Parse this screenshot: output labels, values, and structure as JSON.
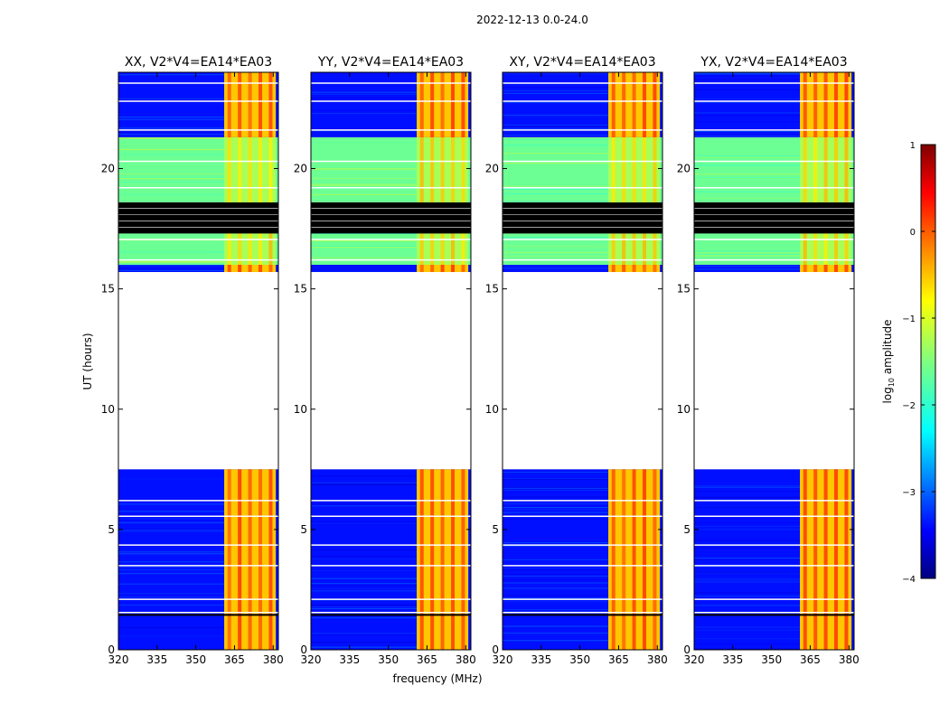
{
  "chart_data": {
    "type": "heatmap",
    "suptitle": "2022-12-13 0.0-24.0",
    "xlabel": "frequency (MHz)",
    "ylabel": "UT (hours)",
    "xlim": [
      320,
      382
    ],
    "ylim": [
      0,
      24
    ],
    "x_ticks": [
      320,
      335,
      350,
      365,
      380
    ],
    "y_ticks": [
      0,
      5,
      10,
      15,
      20
    ],
    "panels": [
      {
        "title": "XX, V2*V4=EA14*EA03",
        "polarization": "XX"
      },
      {
        "title": "YY, V2*V4=EA14*EA03",
        "polarization": "YY"
      },
      {
        "title": "XY, V2*V4=EA14*EA03",
        "polarization": "XY"
      },
      {
        "title": "YX, V2*V4=EA14*EA03",
        "polarization": "YX"
      }
    ],
    "colorbar": {
      "label": "log10 amplitude",
      "label_prefix": "log",
      "label_subscript": "10",
      "label_suffix": " amplitude",
      "range": [
        -4,
        1
      ],
      "ticks": [
        1,
        0,
        -1,
        -2,
        -3,
        -4
      ],
      "colormap": "jet"
    },
    "time_blocks": [
      {
        "start": 0.0,
        "end": 7.5,
        "state": "data",
        "low_log_amp": -3.3,
        "band_log_amp": -0.6
      },
      {
        "start": 7.5,
        "end": 15.7,
        "state": "no data"
      },
      {
        "start": 15.7,
        "end": 16.0,
        "state": "data",
        "low_log_amp": -3.3,
        "band_log_amp": -0.6
      },
      {
        "start": 16.0,
        "end": 17.3,
        "state": "data",
        "low_log_amp": -1.6,
        "band_log_amp": -1.3
      },
      {
        "start": 17.3,
        "end": 18.6,
        "state": "flagged"
      },
      {
        "start": 18.6,
        "end": 21.3,
        "state": "data",
        "low_log_amp": -1.6,
        "band_log_amp": -1.3
      },
      {
        "start": 21.3,
        "end": 24.0,
        "state": "data",
        "low_log_amp": -3.3,
        "band_log_amp": -0.6
      }
    ],
    "bright_band_mhz": [
      361,
      381
    ]
  }
}
